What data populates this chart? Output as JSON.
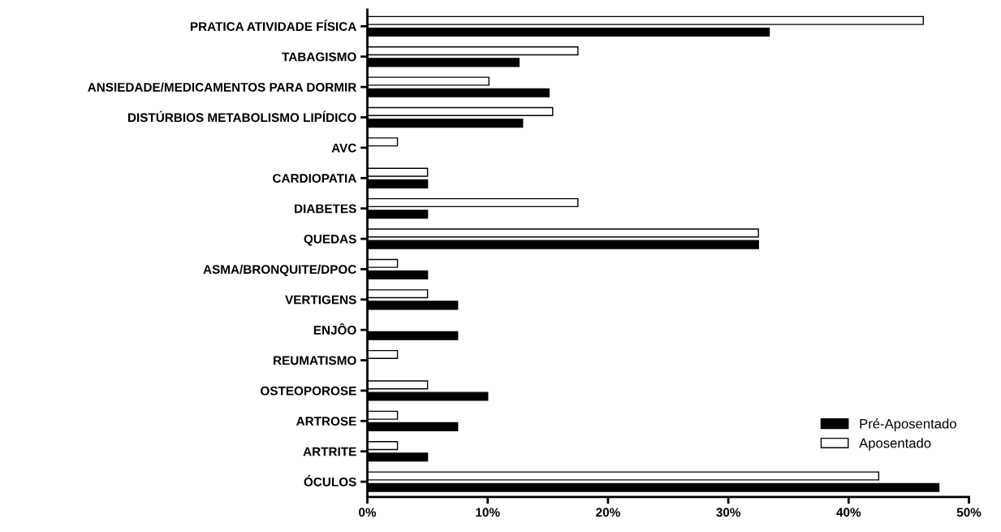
{
  "chart_data": {
    "type": "bar",
    "orientation": "horizontal",
    "categories": [
      "PRATICA ATIVIDADE FÍSICA",
      "TABAGISMO",
      "ANSIEDADE/MEDICAMENTOS PARA DORMIR",
      "DISTÚRBIOS METABOLISMO LIPÍDICO",
      "AVC",
      "CARDIOPATIA",
      "DIABETES",
      "QUEDAS",
      "ASMA/BRONQUITE/DPOC",
      "VERTIGENS",
      "ENJÔO",
      "REUMATISMO",
      "OSTEOPOROSE",
      "ARTROSE",
      "ARTRITE",
      "ÓCULOS"
    ],
    "series": [
      {
        "name": "Aposentado",
        "color": "#ffffff",
        "values": [
          46.2,
          17.5,
          10.1,
          15.4,
          2.5,
          5,
          17.5,
          32.5,
          2.5,
          5,
          0,
          2.5,
          5,
          2.5,
          2.5,
          42.5
        ]
      },
      {
        "name": "Pré-Aposentado",
        "color": "#000000",
        "values": [
          33.4,
          12.6,
          15.1,
          12.9,
          0,
          5,
          5,
          32.5,
          5,
          7.5,
          7.5,
          0,
          10,
          7.5,
          5,
          47.5
        ]
      }
    ],
    "xlim": [
      0,
      50
    ],
    "xticks": [
      {
        "value": 0,
        "label": "0%"
      },
      {
        "value": 10,
        "label": "10%"
      },
      {
        "value": 20,
        "label": "20%"
      },
      {
        "value": 30,
        "label": "30%"
      },
      {
        "value": 40,
        "label": "40%"
      },
      {
        "value": 50,
        "label": "50%"
      }
    ],
    "grid": false,
    "legend": "bottom right"
  }
}
